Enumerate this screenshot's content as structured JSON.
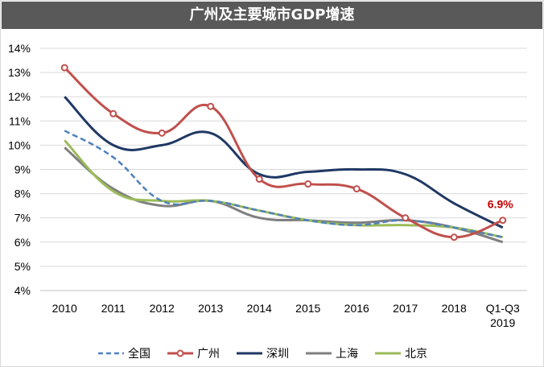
{
  "title_bar": {
    "title": "广州及主要城市GDP增速"
  },
  "chart_data": {
    "type": "line",
    "title": "广州及主要城市GDP增速",
    "categories": [
      "2010",
      "2011",
      "2012",
      "2013",
      "2014",
      "2015",
      "2016",
      "2017",
      "2018",
      "Q1-Q3\n2019"
    ],
    "ylim": [
      4,
      14
    ],
    "yticks": [
      "4%",
      "5%",
      "6%",
      "7%",
      "8%",
      "9%",
      "10%",
      "11%",
      "12%",
      "13%",
      "14%"
    ],
    "grid": true,
    "legend_position": "bottom",
    "series": [
      {
        "name": "全国",
        "color": "#4F81BD",
        "dash": true,
        "markers": false,
        "values": [
          10.6,
          9.5,
          7.7,
          7.7,
          7.3,
          6.9,
          6.7,
          6.9,
          6.6,
          6.2
        ]
      },
      {
        "name": "广州",
        "color": "#C0504D",
        "dash": false,
        "markers": true,
        "values": [
          13.2,
          11.3,
          10.5,
          11.6,
          8.6,
          8.4,
          8.2,
          7.0,
          6.2,
          6.9
        ]
      },
      {
        "name": "深圳",
        "color": "#1F3864",
        "dash": false,
        "markers": false,
        "values": [
          12.0,
          10.0,
          10.0,
          10.5,
          8.8,
          8.9,
          9.0,
          8.8,
          7.6,
          6.6
        ]
      },
      {
        "name": "上海",
        "color": "#7F7F7F",
        "dash": false,
        "markers": false,
        "values": [
          9.9,
          8.2,
          7.5,
          7.7,
          7.0,
          6.9,
          6.8,
          6.9,
          6.6,
          6.0
        ]
      },
      {
        "name": "北京",
        "color": "#9BBB59",
        "dash": false,
        "markers": false,
        "values": [
          10.2,
          8.1,
          7.7,
          7.7,
          7.3,
          6.9,
          6.7,
          6.7,
          6.6,
          6.2
        ]
      }
    ],
    "annotations": [
      {
        "text": "6.9%",
        "series": "广州",
        "category_index": 9,
        "color": "#C00000"
      }
    ]
  }
}
